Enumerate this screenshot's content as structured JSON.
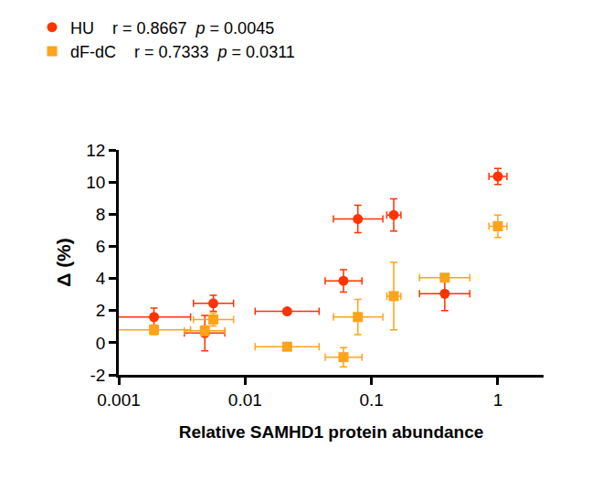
{
  "chart_data": {
    "type": "scatter",
    "x_label": "Relative SAMHD1 protein abundance",
    "y_label": "Δ (%)",
    "log": "x",
    "grid": false,
    "legend": "top-left",
    "xlim": [
      0.001,
      2.3
    ],
    "xticks": [
      0.001,
      0.01,
      0.1,
      1
    ],
    "ylim": [
      -2,
      12
    ],
    "yticks": [
      -2,
      0,
      2,
      4,
      6,
      8,
      10,
      12
    ],
    "series": [
      {
        "name": "HU",
        "r_text": "r = 0.8667",
        "p_text": "p = 0.0045",
        "color": "#ff3300",
        "marker": "circle",
        "x": [
          0.0019,
          0.0048,
          0.0056,
          0.0215,
          0.06,
          0.078,
          0.15,
          0.38,
          1.0
        ],
        "x_err_minus": [
          0.00093,
          0.0015,
          0.0017,
          0.0095,
          0.017,
          0.028,
          0.018,
          0.14,
          0.15
        ],
        "x_err_plus": [
          0.0018,
          0.0021,
          0.0025,
          0.017,
          0.024,
          0.045,
          0.021,
          0.22,
          0.18
        ],
        "values": [
          1.6,
          0.6,
          2.45,
          1.95,
          3.85,
          7.7,
          7.95,
          3.05,
          10.35
        ],
        "y_err": [
          0.55,
          1.1,
          0.5,
          0.15,
          0.7,
          0.85,
          1.0,
          1.05,
          0.5
        ]
      },
      {
        "name": "dF-dC",
        "r_text": "r = 0.7333",
        "p_text": "p = 0.0311",
        "color": "#ffa31a",
        "marker": "square",
        "x": [
          0.0019,
          0.0048,
          0.0056,
          0.0215,
          0.06,
          0.078,
          0.15,
          0.38,
          1.0
        ],
        "x_err_minus": [
          0.00093,
          0.0015,
          0.0017,
          0.0095,
          0.017,
          0.028,
          0.018,
          0.14,
          0.15
        ],
        "x_err_plus": [
          0.0018,
          0.0021,
          0.0025,
          0.017,
          0.024,
          0.045,
          0.021,
          0.22,
          0.18
        ],
        "values": [
          0.8,
          0.75,
          1.45,
          -0.25,
          -0.9,
          1.6,
          2.9,
          4.05,
          7.25
        ],
        "y_err": [
          0.3,
          0.3,
          0.4,
          0.15,
          0.6,
          1.1,
          2.1,
          0.2,
          0.7
        ]
      }
    ]
  }
}
